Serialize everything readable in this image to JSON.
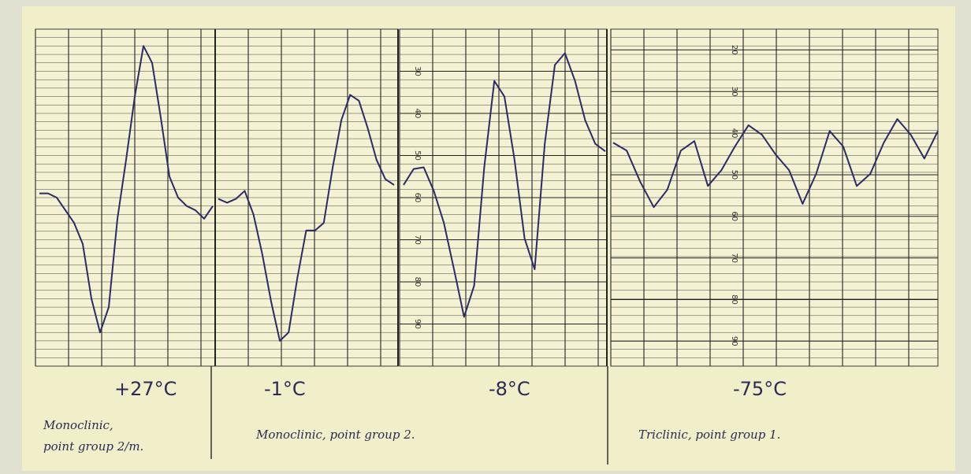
{
  "chart_data": [
    {
      "type": "line",
      "title": "+27°C",
      "subtitle": "Monoclinic, point group 2/m.",
      "color": "#2b2b66",
      "values": [
        59,
        59,
        60,
        63,
        66,
        71,
        84,
        92,
        86,
        65,
        51,
        36,
        24,
        28,
        41,
        55,
        60,
        62,
        63,
        65,
        62
      ],
      "ylim": [
        100,
        20
      ]
    },
    {
      "type": "line",
      "title": "-1°C",
      "subtitle": "Monoclinic, point group 2.",
      "color": "#2b2b66",
      "values": [
        60.3,
        61.2,
        60.3,
        58.4,
        64,
        73.4,
        84.6,
        94,
        92,
        79,
        67.8,
        67.8,
        66,
        53,
        41.6,
        35.6,
        37,
        43.5,
        51,
        55.6,
        57
      ],
      "ylim": [
        100,
        20
      ]
    },
    {
      "type": "line",
      "title": "-8°C",
      "color": "#2b2b66",
      "values": [
        57,
        53.2,
        52.8,
        58.4,
        66,
        77,
        88.3,
        80.9,
        52.8,
        32.3,
        36,
        51,
        69.7,
        77,
        47.2,
        28.5,
        25.7,
        32.3,
        41.6,
        47.2,
        49
      ],
      "ylim": [
        100,
        20
      ],
      "yticks": [
        30,
        40,
        50,
        60,
        70,
        80,
        90
      ]
    },
    {
      "type": "line",
      "title": "-75°C",
      "subtitle": "Triclinic, point group 1.",
      "color": "#2b2b66",
      "values": [
        42.3,
        44.2,
        51.7,
        57.8,
        53.6,
        44.2,
        41.9,
        52.7,
        48.9,
        43.2,
        38.1,
        40.4,
        45.1,
        48.9,
        57,
        49.8,
        39.5,
        43.2,
        52.7,
        49.8,
        42.3,
        36.6,
        40.4,
        46.1,
        39.5
      ],
      "ylim": [
        96,
        15
      ],
      "yticks": [
        20,
        30,
        40,
        50,
        60,
        70,
        80,
        90
      ]
    }
  ]
}
